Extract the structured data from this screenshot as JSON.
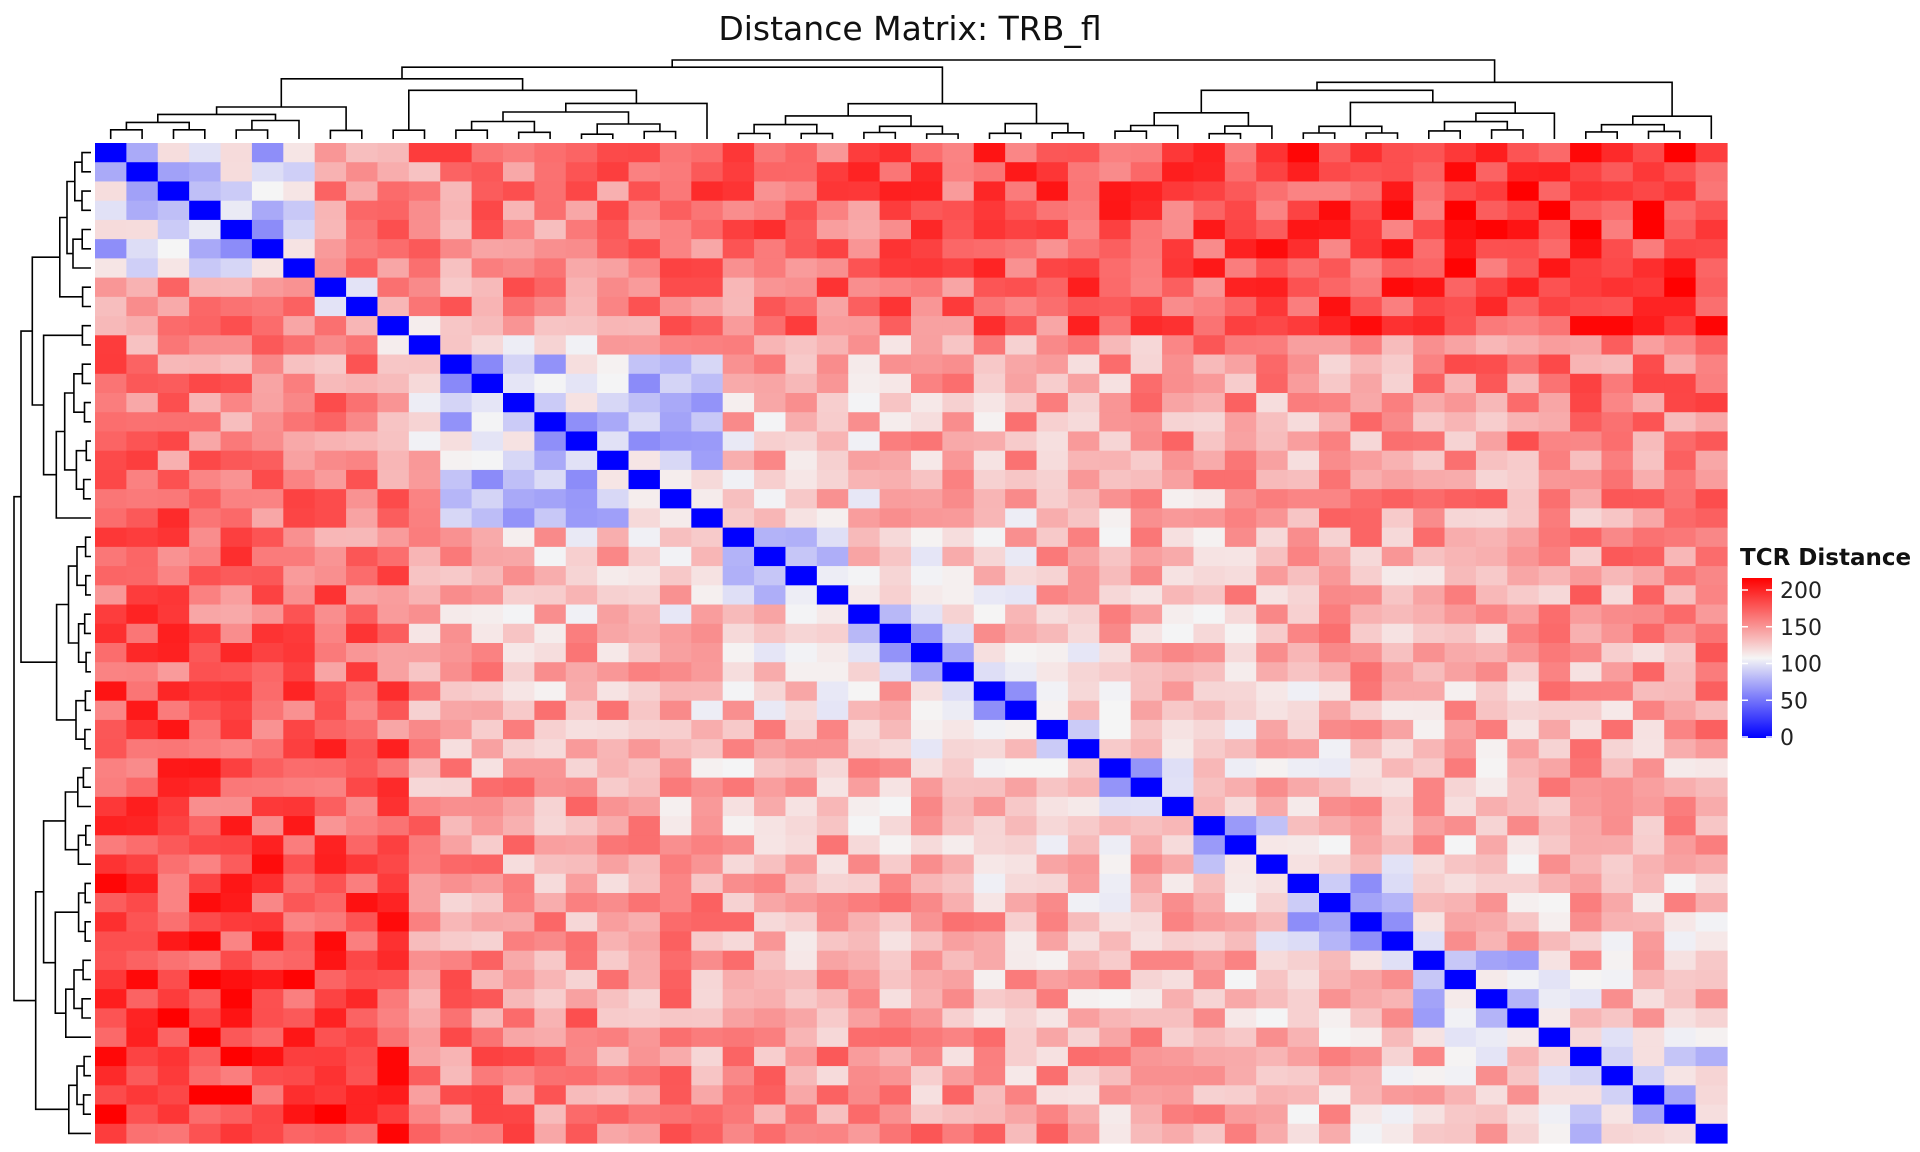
{
  "chart_data": {
    "type": "heatmap",
    "title": "Distance Matrix: TRB_fl",
    "legend": {
      "title": "TCR Distance",
      "ticks": [
        200,
        150,
        100,
        50,
        0
      ],
      "range": [
        0,
        200
      ],
      "placement": "right"
    },
    "color_scale": {
      "low": "#0000ff",
      "mid": "#f5f5f5",
      "high": "#ff0000",
      "midpoint": 100
    },
    "n": 52,
    "row_labels_visible": false,
    "col_labels_visible": false,
    "dendrogram_rows": true,
    "dendrogram_cols": true,
    "cluster_block_sizes": [
      7,
      2,
      2,
      9,
      4,
      4,
      2,
      2,
      3,
      3,
      4,
      5,
      5
    ],
    "matrix_seed": 7
  }
}
